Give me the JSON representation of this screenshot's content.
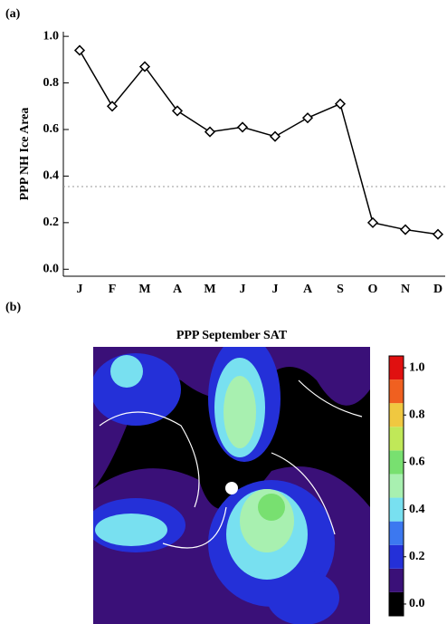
{
  "chart_data": [
    {
      "type": "line",
      "panel_label": "(a)",
      "ylabel": "PPP NH Ice Area",
      "categories": [
        "J",
        "F",
        "M",
        "A",
        "M",
        "J",
        "J",
        "A",
        "S",
        "O",
        "N",
        "D"
      ],
      "series": [
        {
          "color": "#000000",
          "values": [
            0.94,
            0.7,
            0.87,
            0.68,
            0.59,
            0.61,
            0.57,
            0.65,
            0.71,
            0.2,
            0.17,
            0.15
          ]
        }
      ],
      "ylim": [
        -0.03,
        1.02
      ],
      "yticks": [
        {
          "value": 0,
          "label": "0.0"
        },
        0.2,
        0.4,
        0.6,
        0.8,
        {
          "value": 1,
          "label": "1.0"
        }
      ],
      "reference_line": 0.355,
      "reference_color": "#999999"
    },
    {
      "type": "heatmap",
      "panel_label": "(b)",
      "title": "PPP September SAT",
      "clim": [
        -0.05,
        1.05
      ],
      "colors": [
        "#000000",
        "#3a1078",
        "#2430d8",
        "#3c78f0",
        "#78e0f0",
        "#a8f0b0",
        "#78e070",
        "#c0e858",
        "#f0c840",
        "#f06020",
        "#e01010"
      ],
      "ticks": [
        {
          "value": 0,
          "label": "0.0"
        },
        0.2,
        0.4,
        0.6,
        0.8,
        {
          "value": 1,
          "label": "1.0"
        }
      ]
    }
  ]
}
